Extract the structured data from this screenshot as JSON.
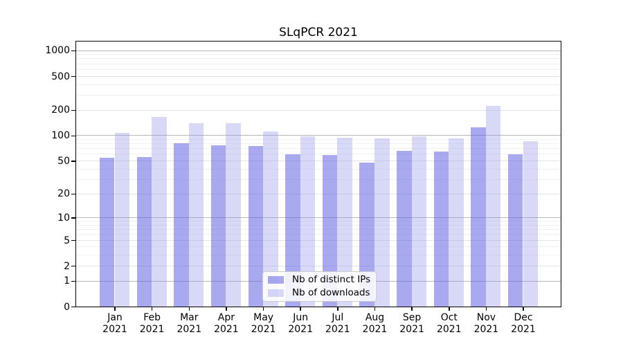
{
  "chart_data": {
    "type": "bar",
    "title": "SLqPCR 2021",
    "year": "2021",
    "months": [
      "Jan",
      "Feb",
      "Mar",
      "Apr",
      "May",
      "Jun",
      "Jul",
      "Aug",
      "Sep",
      "Oct",
      "Nov",
      "Dec"
    ],
    "series": [
      {
        "name": "Nb of distinct IPs",
        "color": "rgba(99,99,228,0.55)",
        "color_hex": "#a9a9ef",
        "values": [
          54,
          55,
          81,
          77,
          75,
          60,
          59,
          48,
          66,
          65,
          125,
          60
        ]
      },
      {
        "name": "Nb of downloads",
        "color": "rgba(142,142,232,0.35)",
        "color_hex": "#d7d7f7",
        "values": [
          107,
          165,
          141,
          141,
          112,
          97,
          94,
          92,
          98,
          93,
          225,
          86
        ]
      }
    ],
    "xlabel": "",
    "ylabel": "",
    "yticks": [
      0,
      1,
      2,
      5,
      10,
      20,
      50,
      100,
      200,
      500,
      1000
    ],
    "minor_gridlines": [
      3,
      4,
      6,
      7,
      8,
      9,
      30,
      40,
      60,
      70,
      80,
      90,
      300,
      400,
      600,
      700,
      800,
      900
    ],
    "scale": "log1p",
    "ylim": [
      0,
      1272
    ],
    "grid": true,
    "legend_position": "lower center",
    "spine_color": "#000000",
    "background": "#ffffff"
  }
}
